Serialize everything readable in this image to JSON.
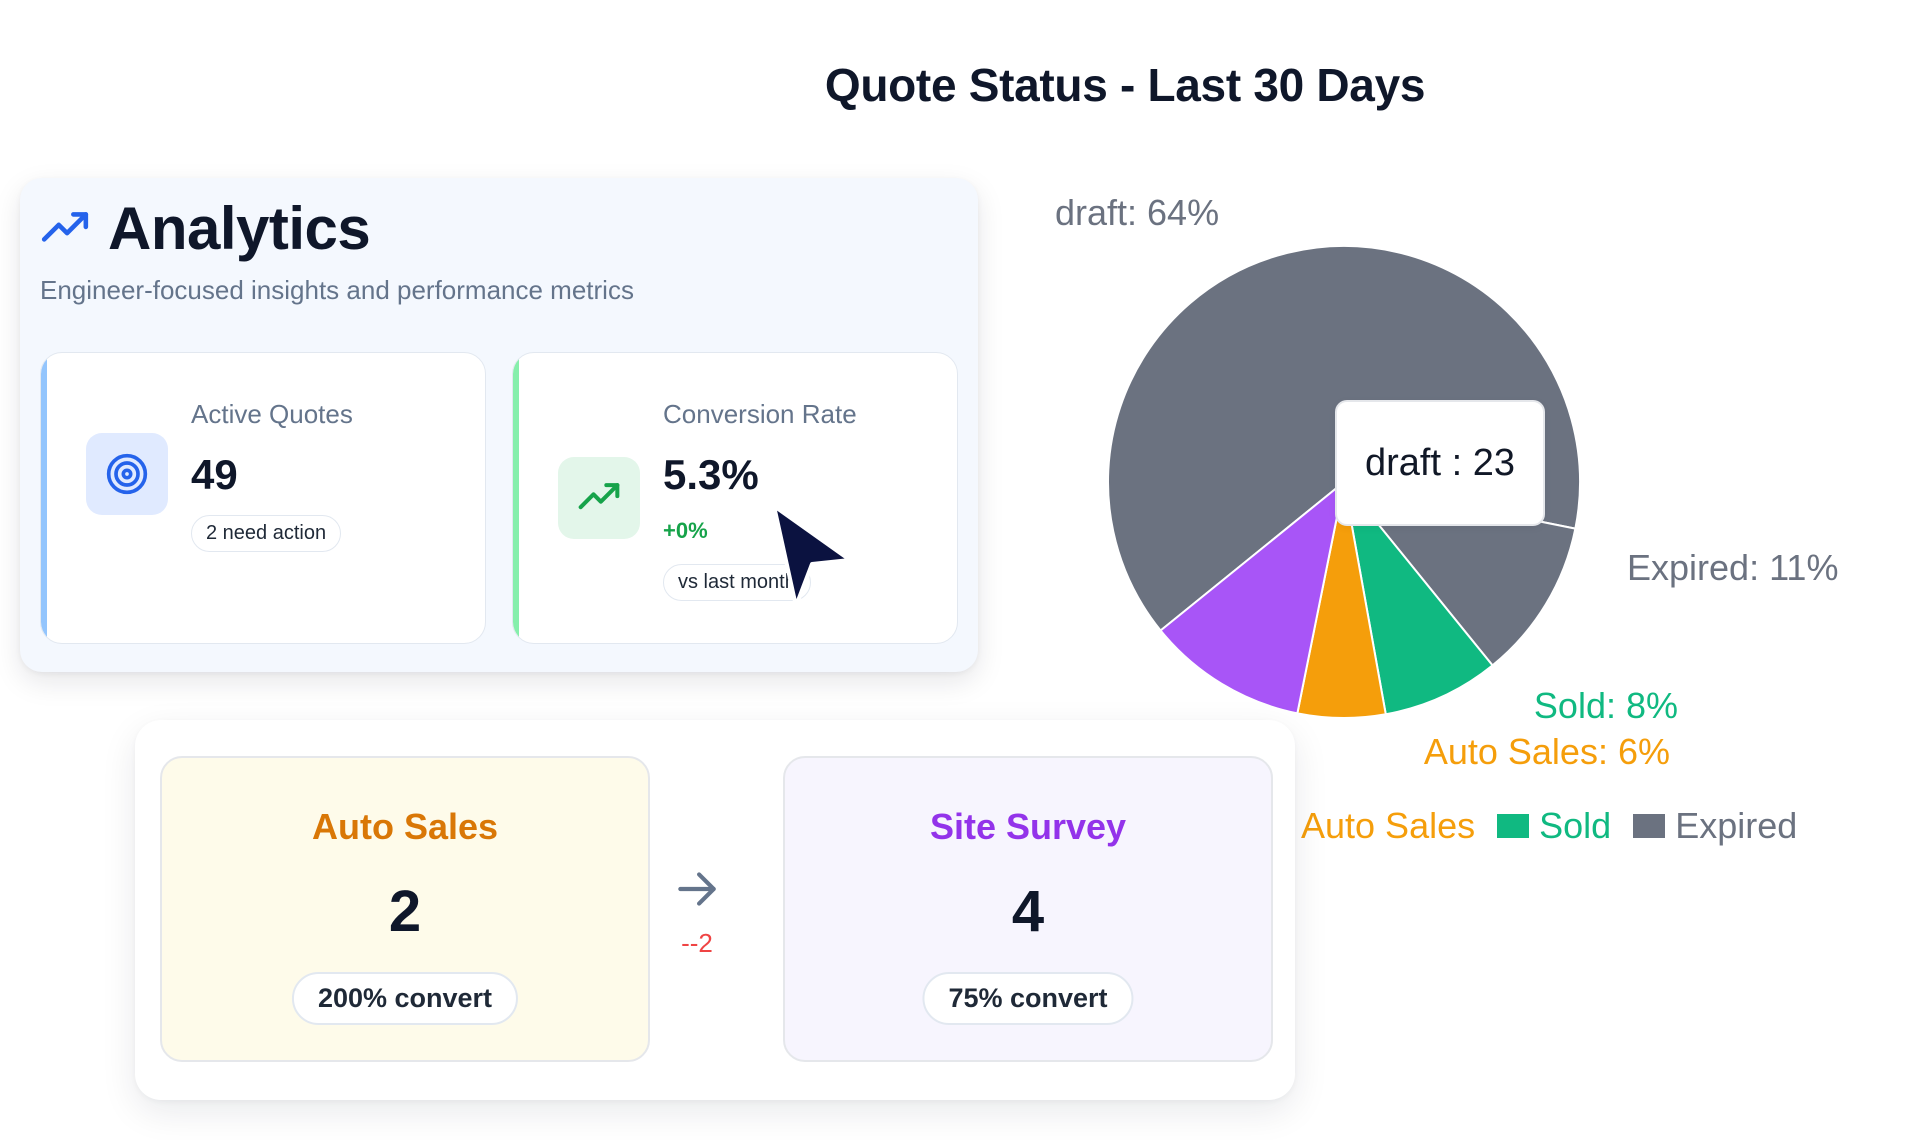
{
  "chart_title": "Quote Status - Last 30 Days",
  "analytics": {
    "title": "Analytics",
    "subtitle": "Engineer-focused insights and performance metrics",
    "metrics": [
      {
        "label": "Active Quotes",
        "value": "49",
        "badge": "2 need action",
        "icon": "target-icon"
      },
      {
        "label": "Conversion Rate",
        "value": "5.3%",
        "change": "+0%",
        "badge": "vs last month",
        "icon": "trending-up-icon"
      }
    ]
  },
  "funnel": {
    "stages": [
      {
        "name": "Auto Sales",
        "count": "2",
        "conversion": "200% convert"
      },
      {
        "name": "Site Survey",
        "count": "4",
        "conversion": "75% convert"
      }
    ],
    "delta": "--2"
  },
  "tooltip": {
    "text": "draft : 23"
  },
  "colors": {
    "draft": "#6b7280",
    "site_survey": "#a855f7",
    "auto_sales": "#f59e0b",
    "sold": "#10b981",
    "expired": "#6b7280",
    "accent_blue": "#2563eb"
  },
  "chart_data": {
    "type": "pie",
    "title": "Quote Status - Last 30 Days",
    "slices": [
      {
        "name": "draft",
        "value": 64,
        "label": "draft: 64%"
      },
      {
        "name": "Expired",
        "value": 11,
        "label": "Expired: 11%"
      },
      {
        "name": "Sold",
        "value": 8,
        "label": "Sold: 8%"
      },
      {
        "name": "Auto Sales",
        "value": 6,
        "label": "Auto Sales: 6%"
      },
      {
        "name": "Site Survey",
        "value": 11,
        "label": ""
      }
    ],
    "legend": [
      {
        "name": "Auto Sales",
        "color": "#f59e0b"
      },
      {
        "name": "Sold",
        "color": "#10b981"
      },
      {
        "name": "Expired",
        "color": "#6b7280"
      }
    ],
    "legend_position": "bottom"
  }
}
